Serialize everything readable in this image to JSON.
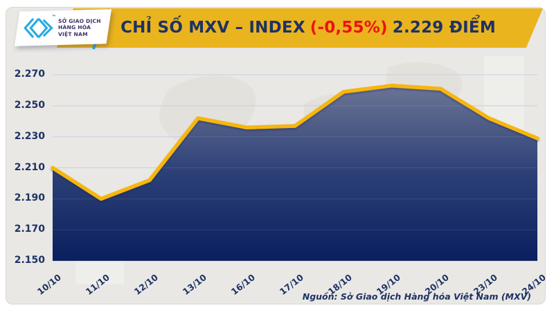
{
  "header": {
    "logo": {
      "line1": "SỞ GIAO DỊCH",
      "line2": "HÀNG HÓA",
      "line3": "VIỆT NAM",
      "trademark": "™",
      "icon": "mxv-chevrons-icon",
      "icon_color": "#29ABE2",
      "text_color": "#3B2F66"
    },
    "title": {
      "prefix": "CHỈ SỐ MXV – INDEX",
      "change": "(-0,55%)",
      "suffix": "2.229 ĐIỂM"
    },
    "colors": {
      "banner": "#EAB41E",
      "title_text": "#1E3263",
      "change_text": "#EE1111",
      "accent_cyan": "#2BA9E0"
    }
  },
  "chart_data": {
    "type": "area",
    "title": "CHỈ SỐ MXV – INDEX (-0,55%) 2.229 ĐIỂM",
    "series_name": "MXV-Index",
    "categories": [
      "10/10",
      "11/10",
      "12/10",
      "13/10",
      "16/10",
      "17/10",
      "18/10",
      "19/10",
      "20/10",
      "23/10",
      "24/10"
    ],
    "values": [
      2210,
      2190,
      2202,
      2242,
      2236,
      2237,
      2259,
      2263,
      2261,
      2242,
      2229
    ],
    "xlabel": "",
    "ylabel": "",
    "ylim": [
      2150,
      2270
    ],
    "y_ticks": [
      2270,
      2250,
      2230,
      2210,
      2190,
      2170,
      2150
    ],
    "y_tick_labels": [
      "2.270",
      "2.250",
      "2.230",
      "2.210",
      "2.190",
      "2.170",
      "2.150"
    ],
    "grid": "horizontal",
    "legend": "none",
    "last_value_label": "2.229",
    "change_pct": "-0,55%",
    "line_color": "#F7B60D",
    "area_gradient": [
      "#6B7495",
      "#2C4077",
      "#0A1F5E"
    ],
    "gridline_color": "#C2CBDE",
    "tick_label_color": "#1E3263"
  },
  "footer": {
    "source": "Nguồn: Sở Giao dịch Hàng hóa Việt Nam (MXV)"
  }
}
